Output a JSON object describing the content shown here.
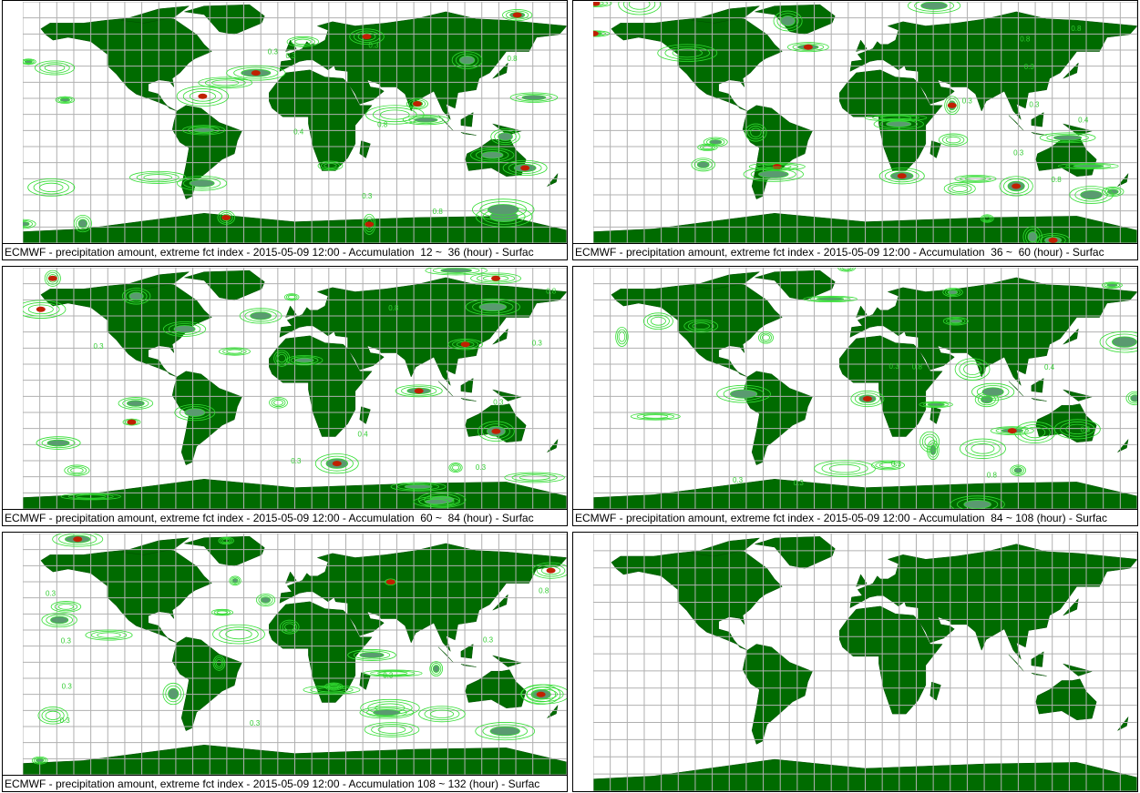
{
  "panels": [
    {
      "caption": "ECMWF - precipitation amount, extreme fct index - 2015-05-09 12:00 - Accumulation  12 ~  36 (hour) - Surfac",
      "labels": [
        "0.3",
        "0.8",
        "0.3",
        "0.4",
        "0.8",
        "0.3",
        "0.3",
        "0.8"
      ]
    },
    {
      "caption": "ECMWF - precipitation amount, extreme fct index - 2015-05-09 12:00 - Accumulation  36 ~  60 (hour) - Surfac",
      "labels": [
        "0.3",
        "0.8",
        "0.3",
        "0.3",
        "0.8",
        "0.4",
        "0.3",
        "0.8"
      ]
    },
    {
      "caption": "ECMWF - precipitation amount, extreme fct index - 2015-05-09 12:00 - Accumulation  60 ~  84 (hour) - Surfac",
      "labels": [
        "0.3",
        "0.8",
        "0.4",
        "0.3",
        "0.3",
        "0.8",
        "0.3",
        "0.3"
      ]
    },
    {
      "caption": "ECMWF - precipitation amount, extreme fct index - 2015-05-09 12:00 - Accumulation  84 ~ 108 (hour) - Surfac",
      "labels": [
        "0.3",
        "0.8",
        "0.3",
        "0.4",
        "0.3",
        "0.8",
        "0.3",
        "0.6"
      ]
    },
    {
      "caption": "ECMWF - precipitation amount, extreme fct index - 2015-05-09 12:00 - Accumulation 108 ~ 132 (hour) - Surfac",
      "labels": [
        "0.3",
        "0.8",
        "0.3",
        "0.3",
        "0.3",
        "0.3",
        "0.3",
        "0.3"
      ]
    },
    {}
  ]
}
